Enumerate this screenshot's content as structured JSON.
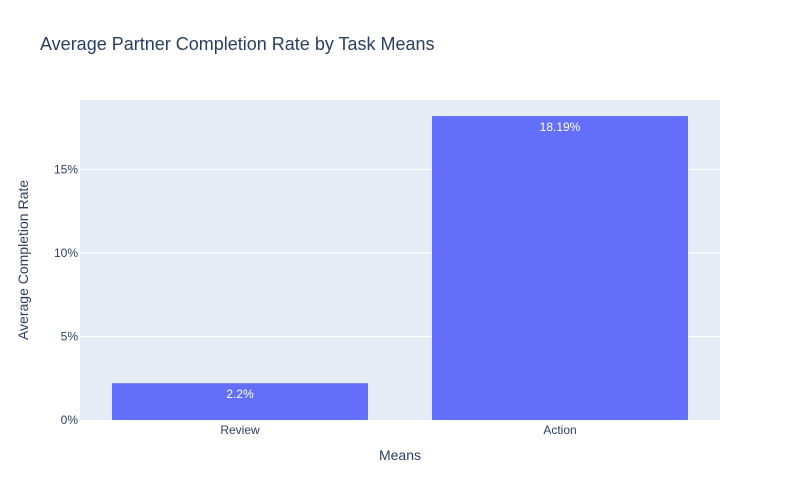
{
  "chart_data": {
    "type": "bar",
    "title": "Average Partner Completion Rate by Task Means",
    "xlabel": "Means",
    "ylabel": "Average Completion Rate",
    "categories": [
      "Review",
      "Action"
    ],
    "values": [
      2.2,
      18.19
    ],
    "data_labels": [
      "2.2%",
      "18.19%"
    ],
    "ylim": [
      0,
      19.15
    ],
    "y_ticks": [
      0,
      5,
      10,
      15
    ],
    "y_tick_labels": [
      "0%",
      "5%",
      "10%",
      "15%"
    ],
    "grid": true,
    "legend": "none",
    "colors": {
      "bar": "#636efa",
      "plot_background": "#e5ecf6",
      "gridline": "#ffffff",
      "text": "#2a3f5f",
      "data_label": "#ffffff"
    }
  }
}
